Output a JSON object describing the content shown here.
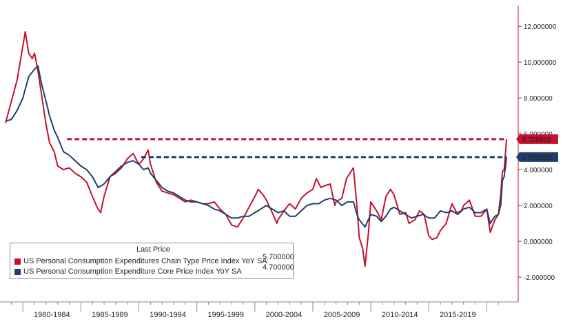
{
  "colors": {
    "headline": "#c5102f",
    "core": "#1f3e6b",
    "axis": "#c5102f",
    "flag_core": "#1f3e6b"
  },
  "legend": {
    "title": "Last Price",
    "items": [
      {
        "label": "US Personal Consumption Expenditures Chain Type Price Index YoY SA",
        "value": "5.700000"
      },
      {
        "label": "US Personal Consumption Expenditure Core Price Index YoY SA",
        "value": "4.700000"
      }
    ]
  },
  "last_value_flags": [
    "5.700000",
    "4.700000"
  ],
  "chart_data": {
    "type": "line",
    "x_axis": {
      "labels": [
        "1980-1984",
        "1985-1989",
        "1990-1994",
        "1995-1999",
        "2000-2004",
        "2005-2009",
        "2010-2014",
        "2015-2019"
      ],
      "range": [
        1978.5,
        2021.7
      ]
    },
    "y_axis": {
      "position": "right",
      "ticks": [
        "-2.000000",
        "0.000000",
        "2.000000",
        "4.000000",
        "6.000000",
        "8.000000",
        "10.000000",
        "12.000000"
      ],
      "range": [
        -2.5,
        12.7
      ]
    },
    "reference_lines": [
      {
        "from_x": 1983.8,
        "y": 5.7,
        "style": "dashed",
        "color": "#c5102f"
      },
      {
        "from_x": 1990.2,
        "y": 4.7,
        "style": "dashed",
        "color": "#1f3e6b"
      }
    ],
    "series": [
      {
        "name": "US Personal Consumption Expenditures Chain Type Price Index YoY SA",
        "color": "#c5102f",
        "points": [
          [
            1978.5,
            6.6
          ],
          [
            1979,
            7.8
          ],
          [
            1979.5,
            9.0
          ],
          [
            1980,
            10.9
          ],
          [
            1980.2,
            11.7
          ],
          [
            1980.5,
            10.5
          ],
          [
            1980.8,
            10.2
          ],
          [
            1981,
            10.5
          ],
          [
            1981.3,
            9.5
          ],
          [
            1981.6,
            8.2
          ],
          [
            1982,
            6.5
          ],
          [
            1982.3,
            5.5
          ],
          [
            1982.7,
            5.0
          ],
          [
            1983,
            4.2
          ],
          [
            1983.5,
            4.0
          ],
          [
            1984,
            4.1
          ],
          [
            1984.5,
            3.8
          ],
          [
            1985,
            3.6
          ],
          [
            1985.5,
            3.3
          ],
          [
            1986,
            2.5
          ],
          [
            1986.4,
            1.9
          ],
          [
            1986.7,
            1.6
          ],
          [
            1987,
            2.5
          ],
          [
            1987.5,
            3.6
          ],
          [
            1988,
            3.8
          ],
          [
            1988.5,
            4.1
          ],
          [
            1989,
            4.6
          ],
          [
            1989.5,
            4.9
          ],
          [
            1990,
            4.3
          ],
          [
            1990.4,
            4.6
          ],
          [
            1990.8,
            5.1
          ],
          [
            1991,
            4.3
          ],
          [
            1991.5,
            3.3
          ],
          [
            1992,
            2.8
          ],
          [
            1992.5,
            2.7
          ],
          [
            1993,
            2.6
          ],
          [
            1993.5,
            2.4
          ],
          [
            1994,
            2.2
          ],
          [
            1994.5,
            2.3
          ],
          [
            1995,
            2.2
          ],
          [
            1995.5,
            2.1
          ],
          [
            1996,
            2.1
          ],
          [
            1996.5,
            2.2
          ],
          [
            1997,
            1.8
          ],
          [
            1997.5,
            1.5
          ],
          [
            1998,
            0.9
          ],
          [
            1998.5,
            0.8
          ],
          [
            1999,
            1.3
          ],
          [
            1999.5,
            1.9
          ],
          [
            2000,
            2.5
          ],
          [
            2000.3,
            2.9
          ],
          [
            2000.7,
            2.6
          ],
          [
            2001,
            2.3
          ],
          [
            2001.5,
            1.6
          ],
          [
            2001.9,
            1.0
          ],
          [
            2002,
            1.2
          ],
          [
            2002.5,
            1.7
          ],
          [
            2003,
            2.1
          ],
          [
            2003.5,
            1.8
          ],
          [
            2004,
            2.4
          ],
          [
            2004.5,
            2.7
          ],
          [
            2005,
            2.9
          ],
          [
            2005.3,
            3.5
          ],
          [
            2005.7,
            3.0
          ],
          [
            2006,
            3.1
          ],
          [
            2006.5,
            3.2
          ],
          [
            2006.9,
            2.0
          ],
          [
            2007,
            2.2
          ],
          [
            2007.5,
            2.4
          ],
          [
            2007.9,
            3.5
          ],
          [
            2008.2,
            3.8
          ],
          [
            2008.5,
            4.1
          ],
          [
            2008.8,
            2.0
          ],
          [
            2009,
            0.2
          ],
          [
            2009.3,
            -0.4
          ],
          [
            2009.5,
            -1.4
          ],
          [
            2009.8,
            0.5
          ],
          [
            2010,
            2.2
          ],
          [
            2010.5,
            1.7
          ],
          [
            2010.9,
            1.2
          ],
          [
            2011.3,
            2.5
          ],
          [
            2011.7,
            2.9
          ],
          [
            2012,
            2.6
          ],
          [
            2012.5,
            1.5
          ],
          [
            2013,
            1.6
          ],
          [
            2013.3,
            1.0
          ],
          [
            2013.8,
            1.2
          ],
          [
            2014.2,
            1.7
          ],
          [
            2014.6,
            1.5
          ],
          [
            2015,
            0.3
          ],
          [
            2015.3,
            0.1
          ],
          [
            2015.7,
            0.2
          ],
          [
            2016,
            0.6
          ],
          [
            2016.5,
            1.0
          ],
          [
            2017,
            2.1
          ],
          [
            2017.4,
            1.6
          ],
          [
            2017.8,
            1.7
          ],
          [
            2018,
            2.0
          ],
          [
            2018.5,
            2.3
          ],
          [
            2019,
            1.4
          ],
          [
            2019.5,
            1.4
          ],
          [
            2020,
            1.8
          ],
          [
            2020.3,
            0.5
          ],
          [
            2020.7,
            1.2
          ],
          [
            2021,
            1.5
          ],
          [
            2021.2,
            2.6
          ],
          [
            2021.35,
            3.9
          ],
          [
            2021.5,
            4.0
          ],
          [
            2021.62,
            5.0
          ],
          [
            2021.7,
            5.7
          ]
        ]
      },
      {
        "name": "US Personal Consumption Expenditure Core Price Index YoY SA",
        "color": "#1f3e6b",
        "points": [
          [
            1978.5,
            6.7
          ],
          [
            1979,
            6.8
          ],
          [
            1979.5,
            7.3
          ],
          [
            1980,
            8.0
          ],
          [
            1980.5,
            9.2
          ],
          [
            1981,
            9.6
          ],
          [
            1981.3,
            9.8
          ],
          [
            1981.6,
            8.8
          ],
          [
            1982,
            7.8
          ],
          [
            1982.3,
            7.0
          ],
          [
            1982.7,
            6.2
          ],
          [
            1983,
            5.8
          ],
          [
            1983.5,
            5.0
          ],
          [
            1984,
            4.8
          ],
          [
            1984.5,
            4.5
          ],
          [
            1985,
            4.2
          ],
          [
            1985.5,
            4.0
          ],
          [
            1986,
            3.6
          ],
          [
            1986.5,
            3.0
          ],
          [
            1987,
            3.2
          ],
          [
            1987.5,
            3.6
          ],
          [
            1988,
            3.9
          ],
          [
            1988.5,
            4.2
          ],
          [
            1989,
            4.4
          ],
          [
            1989.5,
            4.5
          ],
          [
            1990,
            4.3
          ],
          [
            1990.4,
            4.0
          ],
          [
            1990.8,
            4.1
          ],
          [
            1991,
            3.8
          ],
          [
            1991.5,
            3.4
          ],
          [
            1992,
            3.0
          ],
          [
            1992.5,
            2.8
          ],
          [
            1993,
            2.7
          ],
          [
            1993.5,
            2.5
          ],
          [
            1994,
            2.3
          ],
          [
            1994.5,
            2.2
          ],
          [
            1995,
            2.2
          ],
          [
            1995.5,
            2.1
          ],
          [
            1996,
            2.0
          ],
          [
            1996.5,
            1.8
          ],
          [
            1997,
            1.7
          ],
          [
            1997.5,
            1.5
          ],
          [
            1998,
            1.3
          ],
          [
            1998.5,
            1.3
          ],
          [
            1999,
            1.4
          ],
          [
            1999.5,
            1.4
          ],
          [
            2000,
            1.6
          ],
          [
            2000.5,
            1.8
          ],
          [
            2001,
            2.0
          ],
          [
            2001.5,
            1.8
          ],
          [
            2002,
            1.6
          ],
          [
            2002.5,
            1.7
          ],
          [
            2003,
            1.4
          ],
          [
            2003.5,
            1.4
          ],
          [
            2004,
            1.7
          ],
          [
            2004.5,
            2.0
          ],
          [
            2005,
            2.1
          ],
          [
            2005.5,
            2.1
          ],
          [
            2006,
            2.3
          ],
          [
            2006.5,
            2.4
          ],
          [
            2007,
            2.3
          ],
          [
            2007.5,
            2.0
          ],
          [
            2008,
            2.2
          ],
          [
            2008.5,
            2.2
          ],
          [
            2008.8,
            1.5
          ],
          [
            2009,
            1.2
          ],
          [
            2009.5,
            0.8
          ],
          [
            2010,
            1.5
          ],
          [
            2010.5,
            1.4
          ],
          [
            2010.9,
            1.1
          ],
          [
            2011.3,
            1.4
          ],
          [
            2011.7,
            1.8
          ],
          [
            2012,
            1.9
          ],
          [
            2012.5,
            1.7
          ],
          [
            2013,
            1.5
          ],
          [
            2013.5,
            1.3
          ],
          [
            2014,
            1.4
          ],
          [
            2014.5,
            1.5
          ],
          [
            2015,
            1.3
          ],
          [
            2015.5,
            1.3
          ],
          [
            2016,
            1.7
          ],
          [
            2016.5,
            1.6
          ],
          [
            2017,
            1.7
          ],
          [
            2017.5,
            1.5
          ],
          [
            2018,
            1.8
          ],
          [
            2018.5,
            1.9
          ],
          [
            2019,
            1.6
          ],
          [
            2019.5,
            1.6
          ],
          [
            2020,
            1.8
          ],
          [
            2020.3,
            1.0
          ],
          [
            2020.7,
            1.4
          ],
          [
            2021,
            1.5
          ],
          [
            2021.2,
            2.0
          ],
          [
            2021.35,
            3.4
          ],
          [
            2021.5,
            3.6
          ],
          [
            2021.62,
            4.2
          ],
          [
            2021.7,
            4.7
          ]
        ]
      }
    ]
  }
}
